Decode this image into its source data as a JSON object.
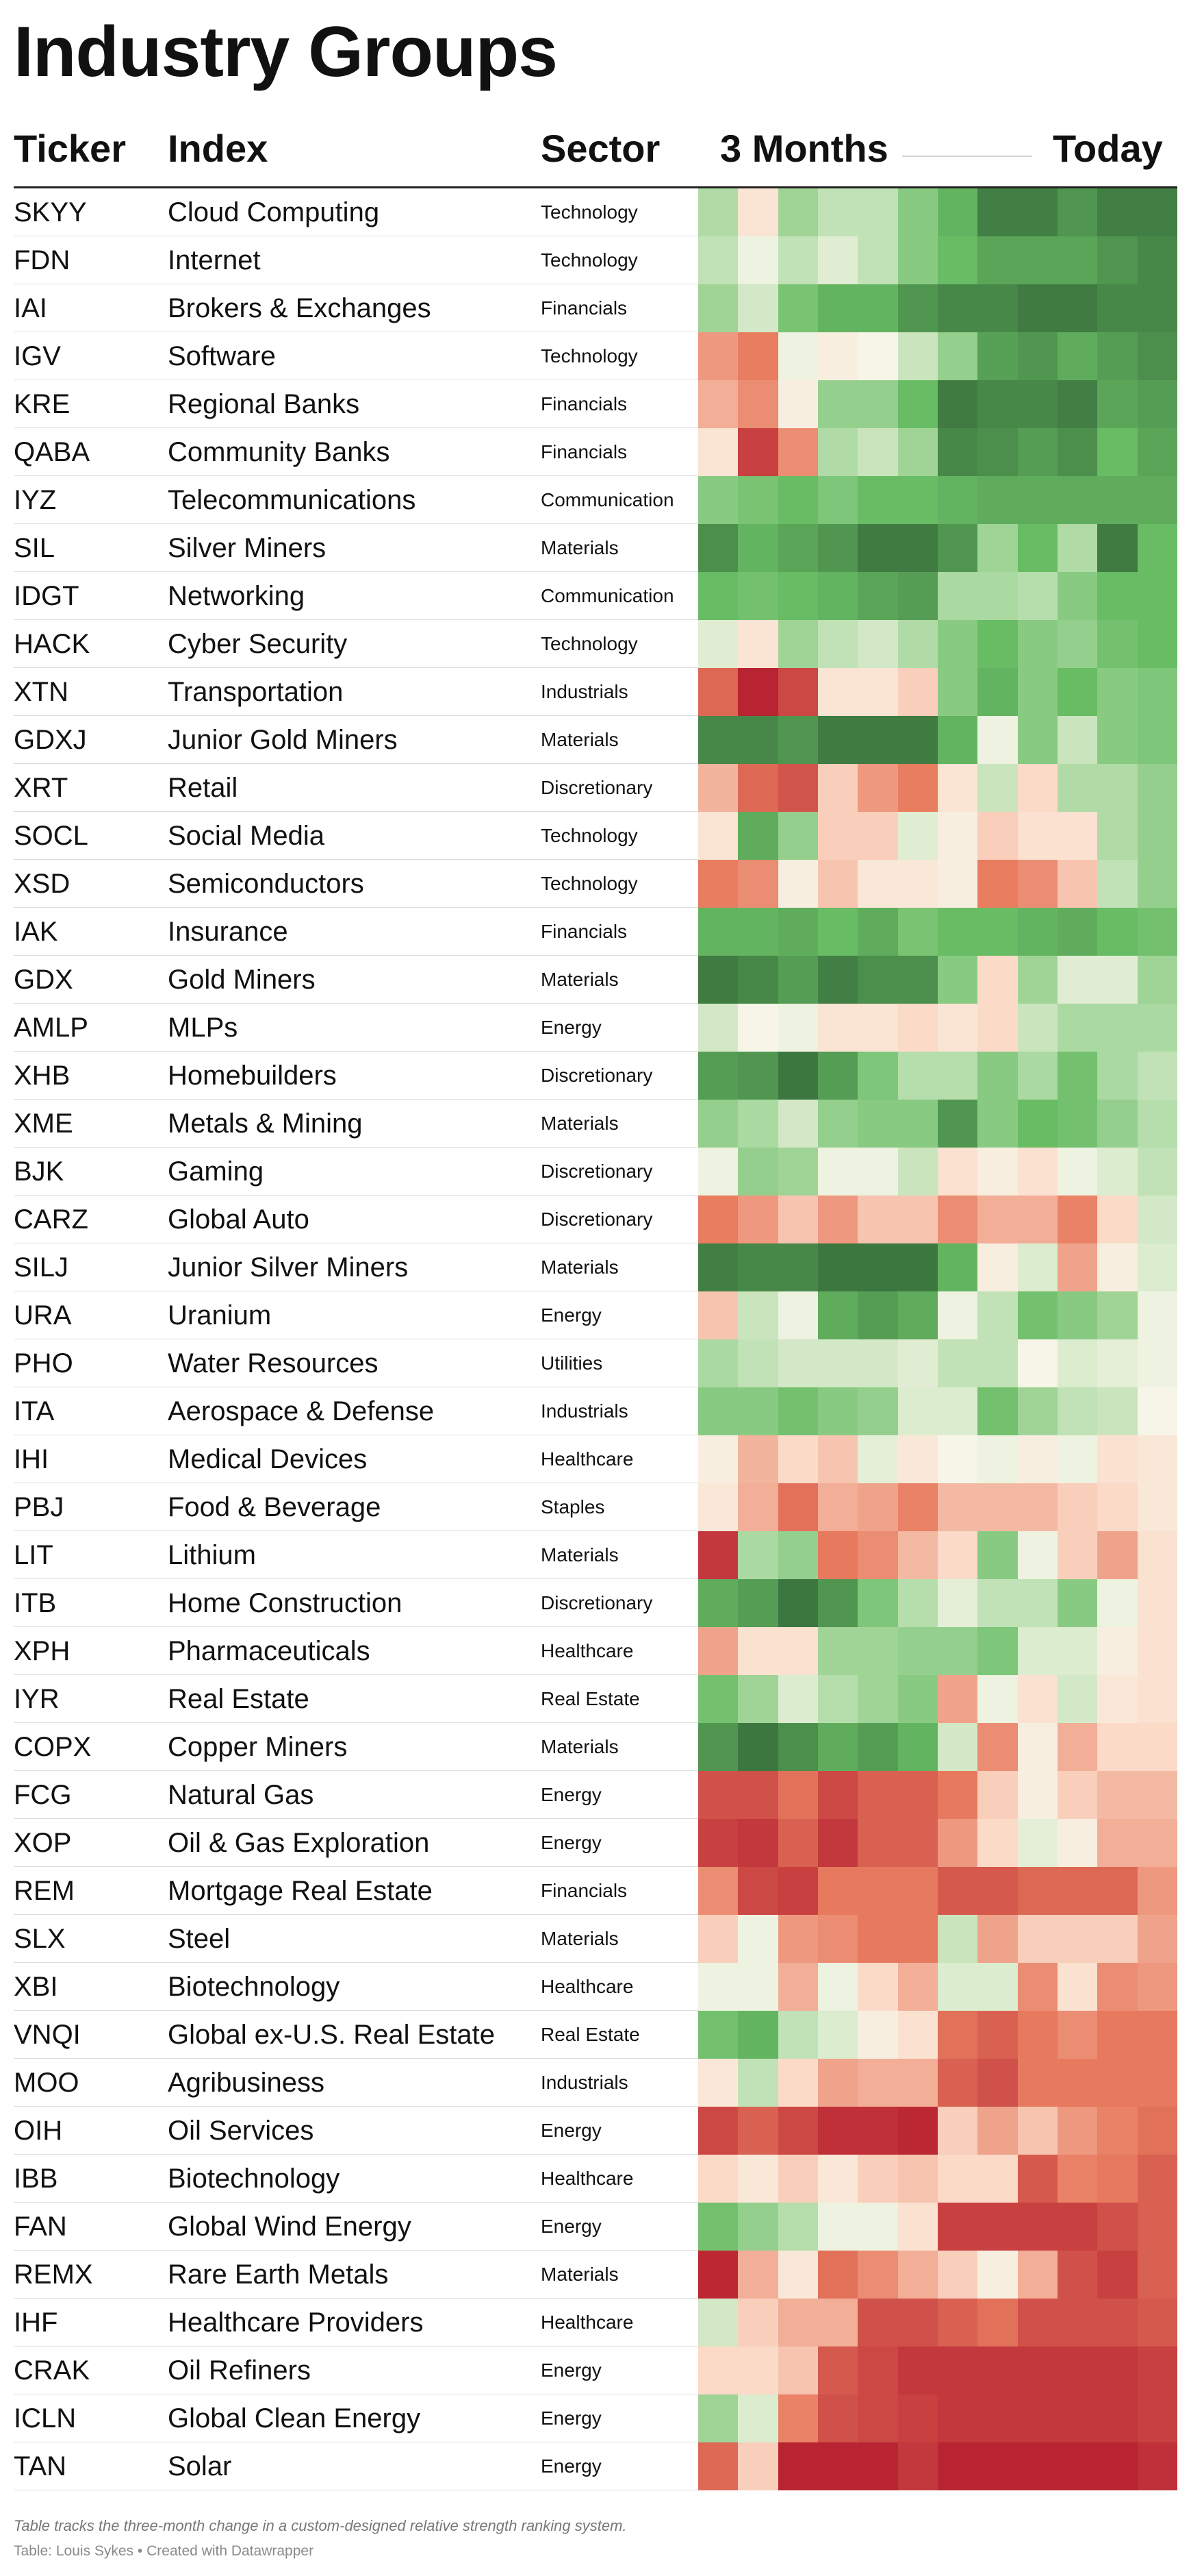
{
  "page": {
    "title": "Industry Groups",
    "footer_note": "Table tracks the three-month change in a custom-designed relative strength ranking system.",
    "footer_credit": "Table: Louis Sykes • Created with Datawrapper"
  },
  "columns": {
    "ticker": "Ticker",
    "index": "Index",
    "sector": "Sector",
    "period_start": "3 Months",
    "period_end": "Today"
  },
  "chart_data": {
    "type": "heatmap",
    "title": "Industry Groups",
    "x_label_start": "3 Months",
    "x_label_end": "Today",
    "scale_note": "Each row shows 12 periods over three months; green = strong relative strength rank, red = weak (values on a 0–100 scale estimated from colour).",
    "rows": [
      {
        "ticker": "SKYY",
        "index": "Cloud Computing",
        "sector": "Technology",
        "values": [
          65,
          45,
          68,
          62,
          62,
          72,
          80,
          94,
          94,
          88,
          94,
          94
        ]
      },
      {
        "ticker": "FDN",
        "index": "Internet",
        "sector": "Technology",
        "values": [
          62,
          52,
          62,
          55,
          62,
          72,
          78,
          84,
          84,
          84,
          88,
          92
        ]
      },
      {
        "ticker": "IAI",
        "index": "Brokers & Exchanges",
        "sector": "Financials",
        "values": [
          68,
          58,
          75,
          80,
          80,
          88,
          92,
          92,
          95,
          95,
          92,
          92
        ]
      },
      {
        "ticker": "IGV",
        "index": "Software",
        "sector": "Technology",
        "values": [
          30,
          25,
          52,
          48,
          50,
          60,
          70,
          85,
          88,
          82,
          86,
          90
        ]
      },
      {
        "ticker": "KRE",
        "index": "Regional Banks",
        "sector": "Financials",
        "values": [
          34,
          28,
          48,
          70,
          70,
          78,
          95,
          92,
          92,
          94,
          84,
          86
        ]
      },
      {
        "ticker": "QABA",
        "index": "Community Banks",
        "sector": "Financials",
        "values": [
          45,
          10,
          28,
          65,
          60,
          68,
          92,
          90,
          86,
          90,
          78,
          84
        ]
      },
      {
        "ticker": "IYZ",
        "index": "Telecommunications",
        "sector": "Communication",
        "values": [
          72,
          75,
          78,
          74,
          78,
          78,
          80,
          82,
          82,
          82,
          82,
          82
        ]
      },
      {
        "ticker": "SIL",
        "index": "Silver Miners",
        "sector": "Materials",
        "values": [
          90,
          80,
          84,
          88,
          95,
          95,
          88,
          68,
          78,
          65,
          95,
          78
        ]
      },
      {
        "ticker": "IDGT",
        "index": "Networking",
        "sector": "Communication",
        "values": [
          78,
          76,
          78,
          80,
          84,
          86,
          66,
          66,
          64,
          72,
          78,
          78
        ]
      },
      {
        "ticker": "HACK",
        "index": "Cyber Security",
        "sector": "Technology",
        "values": [
          55,
          45,
          68,
          62,
          58,
          65,
          72,
          78,
          72,
          70,
          76,
          78
        ]
      },
      {
        "ticker": "XTN",
        "index": "Transportation",
        "sector": "Industrials",
        "values": [
          20,
          3,
          12,
          45,
          45,
          40,
          72,
          80,
          72,
          78,
          72,
          74
        ]
      },
      {
        "ticker": "GDXJ",
        "index": "Junior Gold Miners",
        "sector": "Materials",
        "values": [
          92,
          92,
          88,
          95,
          95,
          95,
          80,
          52,
          72,
          60,
          72,
          74
        ]
      },
      {
        "ticker": "XRT",
        "index": "Retail",
        "sector": "Discretionary",
        "values": [
          35,
          20,
          15,
          40,
          30,
          25,
          45,
          60,
          42,
          65,
          65,
          70
        ]
      },
      {
        "ticker": "SOCL",
        "index": "Social Media",
        "sector": "Technology",
        "values": [
          45,
          82,
          70,
          40,
          40,
          55,
          48,
          40,
          44,
          44,
          65,
          70
        ]
      },
      {
        "ticker": "XSD",
        "index": "Semiconductors",
        "sector": "Technology",
        "values": [
          25,
          28,
          48,
          38,
          46,
          46,
          48,
          25,
          28,
          38,
          62,
          70
        ]
      },
      {
        "ticker": "IAK",
        "index": "Insurance",
        "sector": "Financials",
        "values": [
          80,
          80,
          82,
          78,
          82,
          75,
          78,
          78,
          80,
          82,
          78,
          76
        ]
      },
      {
        "ticker": "GDX",
        "index": "Gold Miners",
        "sector": "Materials",
        "values": [
          95,
          92,
          86,
          94,
          90,
          90,
          72,
          42,
          68,
          55,
          55,
          68
        ]
      },
      {
        "ticker": "AMLP",
        "index": "MLPs",
        "sector": "Energy",
        "values": [
          58,
          50,
          52,
          45,
          45,
          42,
          45,
          42,
          60,
          66,
          66,
          66
        ]
      },
      {
        "ticker": "XHB",
        "index": "Homebuilders",
        "sector": "Discretionary",
        "values": [
          86,
          88,
          96,
          86,
          74,
          64,
          64,
          72,
          66,
          76,
          66,
          62
        ]
      },
      {
        "ticker": "XME",
        "index": "Metals & Mining",
        "sector": "Materials",
        "values": [
          70,
          66,
          58,
          70,
          72,
          72,
          88,
          72,
          78,
          76,
          70,
          64
        ]
      },
      {
        "ticker": "BJK",
        "index": "Gaming",
        "sector": "Discretionary",
        "values": [
          52,
          70,
          68,
          52,
          52,
          60,
          44,
          48,
          44,
          52,
          56,
          62
        ]
      },
      {
        "ticker": "CARZ",
        "index": "Global Auto",
        "sector": "Discretionary",
        "values": [
          25,
          30,
          38,
          30,
          38,
          38,
          28,
          34,
          34,
          26,
          42,
          58
        ]
      },
      {
        "ticker": "SILJ",
        "index": "Junior Silver Miners",
        "sector": "Materials",
        "values": [
          94,
          92,
          92,
          96,
          96,
          96,
          80,
          48,
          56,
          32,
          48,
          56
        ]
      },
      {
        "ticker": "URA",
        "index": "Uranium",
        "sector": "Energy",
        "values": [
          38,
          60,
          52,
          82,
          86,
          82,
          52,
          62,
          76,
          72,
          68,
          52
        ]
      },
      {
        "ticker": "PHO",
        "index": "Water Resources",
        "sector": "Utilities",
        "values": [
          66,
          62,
          58,
          58,
          58,
          55,
          62,
          62,
          50,
          56,
          54,
          52
        ]
      },
      {
        "ticker": "ITA",
        "index": "Aerospace & Defense",
        "sector": "Industrials",
        "values": [
          72,
          72,
          76,
          72,
          70,
          56,
          56,
          76,
          68,
          62,
          60,
          50
        ]
      },
      {
        "ticker": "IHI",
        "index": "Medical Devices",
        "sector": "Healthcare",
        "values": [
          48,
          35,
          42,
          38,
          54,
          46,
          50,
          52,
          48,
          52,
          44,
          46
        ]
      },
      {
        "ticker": "PBJ",
        "index": "Food & Beverage",
        "sector": "Staples",
        "values": [
          46,
          34,
          22,
          34,
          32,
          26,
          36,
          36,
          36,
          40,
          42,
          46
        ]
      },
      {
        "ticker": "LIT",
        "index": "Lithium",
        "sector": "Materials",
        "values": [
          8,
          66,
          70,
          24,
          28,
          36,
          42,
          72,
          52,
          40,
          32,
          44
        ]
      },
      {
        "ticker": "ITB",
        "index": "Home Construction",
        "sector": "Discretionary",
        "values": [
          82,
          86,
          96,
          88,
          74,
          64,
          54,
          62,
          62,
          72,
          52,
          44
        ]
      },
      {
        "ticker": "XPH",
        "index": "Pharmaceuticals",
        "sector": "Healthcare",
        "values": [
          32,
          44,
          44,
          68,
          68,
          70,
          70,
          74,
          56,
          56,
          48,
          44
        ]
      },
      {
        "ticker": "IYR",
        "index": "Real Estate",
        "sector": "Real Estate",
        "values": [
          76,
          68,
          56,
          64,
          68,
          72,
          32,
          52,
          44,
          58,
          46,
          44
        ]
      },
      {
        "ticker": "COPX",
        "index": "Copper Miners",
        "sector": "Materials",
        "values": [
          88,
          96,
          90,
          82,
          86,
          80,
          58,
          28,
          48,
          34,
          42,
          42
        ]
      },
      {
        "ticker": "FCG",
        "index": "Natural Gas",
        "sector": "Energy",
        "values": [
          14,
          14,
          22,
          12,
          18,
          18,
          24,
          40,
          48,
          40,
          36,
          36
        ]
      },
      {
        "ticker": "XOP",
        "index": "Oil & Gas Exploration",
        "sector": "Energy",
        "values": [
          10,
          8,
          18,
          8,
          18,
          18,
          30,
          42,
          54,
          48,
          34,
          34
        ]
      },
      {
        "ticker": "REM",
        "index": "Mortgage Real Estate",
        "sector": "Financials",
        "values": [
          28,
          12,
          10,
          24,
          24,
          24,
          16,
          16,
          20,
          20,
          20,
          30
        ]
      },
      {
        "ticker": "SLX",
        "index": "Steel",
        "sector": "Materials",
        "values": [
          40,
          52,
          30,
          28,
          24,
          24,
          60,
          32,
          40,
          40,
          40,
          32
        ]
      },
      {
        "ticker": "XBI",
        "index": "Biotechnology",
        "sector": "Healthcare",
        "values": [
          52,
          52,
          34,
          52,
          42,
          34,
          56,
          56,
          28,
          44,
          28,
          30
        ]
      },
      {
        "ticker": "VNQI",
        "index": "Global ex-U.S. Real Estate",
        "sector": "Real Estate",
        "values": [
          76,
          80,
          62,
          56,
          48,
          44,
          22,
          18,
          24,
          28,
          24,
          24
        ]
      },
      {
        "ticker": "MOO",
        "index": "Agribusiness",
        "sector": "Industrials",
        "values": [
          46,
          62,
          42,
          32,
          34,
          34,
          18,
          14,
          24,
          24,
          24,
          24
        ]
      },
      {
        "ticker": "OIH",
        "index": "Oil Services",
        "sector": "Energy",
        "values": [
          12,
          18,
          12,
          6,
          6,
          4,
          40,
          32,
          38,
          30,
          26,
          22
        ]
      },
      {
        "ticker": "IBB",
        "index": "Biotechnology",
        "sector": "Healthcare",
        "values": [
          42,
          46,
          40,
          46,
          40,
          38,
          42,
          42,
          16,
          26,
          24,
          18
        ]
      },
      {
        "ticker": "FAN",
        "index": "Global Wind Energy",
        "sector": "Energy",
        "values": [
          76,
          70,
          64,
          52,
          52,
          44,
          10,
          10,
          10,
          10,
          14,
          18
        ]
      },
      {
        "ticker": "REMX",
        "index": "Rare Earth Metals",
        "sector": "Materials",
        "values": [
          4,
          34,
          46,
          22,
          28,
          34,
          40,
          48,
          34,
          14,
          10,
          18
        ]
      },
      {
        "ticker": "IHF",
        "index": "Healthcare Providers",
        "sector": "Healthcare",
        "values": [
          58,
          40,
          34,
          34,
          14,
          14,
          18,
          22,
          14,
          14,
          14,
          16
        ]
      },
      {
        "ticker": "CRAK",
        "index": "Oil Refiners",
        "sector": "Energy",
        "values": [
          42,
          42,
          38,
          16,
          12,
          8,
          8,
          8,
          8,
          8,
          8,
          10
        ]
      },
      {
        "ticker": "ICLN",
        "index": "Global Clean Energy",
        "sector": "Energy",
        "values": [
          68,
          56,
          26,
          14,
          12,
          10,
          8,
          8,
          8,
          8,
          8,
          10
        ]
      },
      {
        "ticker": "TAN",
        "index": "Solar",
        "sector": "Energy",
        "values": [
          20,
          40,
          3,
          3,
          3,
          8,
          3,
          3,
          3,
          3,
          3,
          6
        ]
      }
    ]
  }
}
